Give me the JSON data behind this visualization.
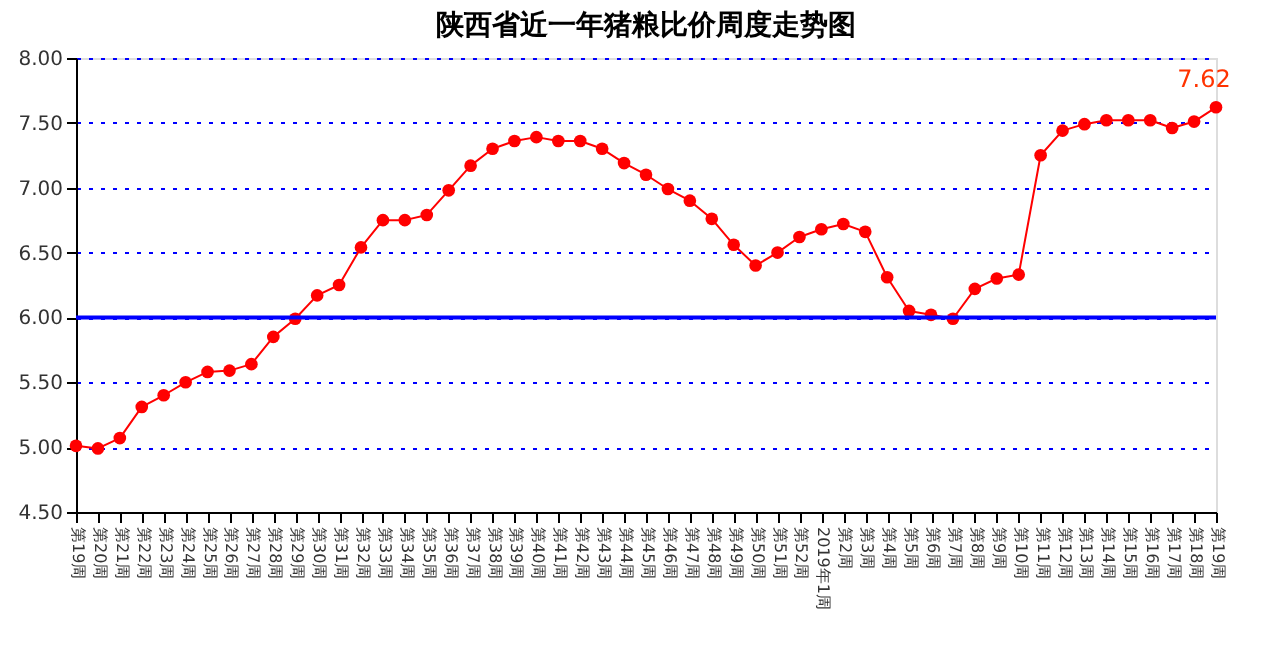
{
  "chart_data": {
    "type": "line",
    "title": "陕西省近一年猪粮比价周度走势图",
    "categories": [
      "第19周",
      "第20周",
      "第21周",
      "第22周",
      "第23周",
      "第24周",
      "第25周",
      "第26周",
      "第27周",
      "第28周",
      "第29周",
      "第30周",
      "第31周",
      "第32周",
      "第33周",
      "第34周",
      "第35周",
      "第36周",
      "第37周",
      "第38周",
      "第39周",
      "第40周",
      "第41周",
      "第42周",
      "第43周",
      "第44周",
      "第45周",
      "第46周",
      "第47周",
      "第48周",
      "第49周",
      "第50周",
      "第51周",
      "第52周",
      "2019年1周",
      "第2周",
      "第3周",
      "第4周",
      "第5周",
      "第6周",
      "第7周",
      "第8周",
      "第9周",
      "第10周",
      "第11周",
      "第12周",
      "第13周",
      "第14周",
      "第15周",
      "第16周",
      "第17周",
      "第18周",
      "第19周"
    ],
    "series": [
      {
        "color": "#ff0000",
        "values": [
          5.01,
          4.99,
          5.07,
          5.31,
          5.4,
          5.5,
          5.58,
          5.59,
          5.64,
          5.85,
          5.99,
          6.17,
          6.25,
          6.54,
          6.75,
          6.75,
          6.79,
          6.98,
          7.17,
          7.3,
          7.36,
          7.39,
          7.36,
          7.36,
          7.3,
          7.19,
          7.1,
          6.99,
          6.9,
          6.76,
          6.56,
          6.4,
          6.5,
          6.62,
          6.68,
          6.72,
          6.66,
          6.31,
          6.05,
          6.02,
          5.99,
          6.22,
          6.3,
          6.33,
          7.25,
          7.44,
          7.49,
          7.52,
          7.52,
          7.52,
          7.46,
          7.51,
          7.62
        ],
        "value_labels": [
          null,
          null,
          null,
          null,
          null,
          null,
          null,
          null,
          null,
          null,
          null,
          null,
          null,
          null,
          null,
          null,
          null,
          null,
          null,
          null,
          null,
          null,
          null,
          null,
          null,
          null,
          null,
          null,
          null,
          null,
          null,
          null,
          null,
          null,
          null,
          null,
          null,
          null,
          null,
          null,
          null,
          null,
          null,
          null,
          null,
          null,
          null,
          null,
          null,
          null,
          null,
          null,
          "7.62"
        ]
      }
    ],
    "ylim": [
      4.5,
      8.0
    ],
    "yticks": [
      {
        "value": 4.5,
        "label": "4.50"
      },
      {
        "value": 5.0,
        "label": "5.00"
      },
      {
        "value": 5.5,
        "label": "5.50"
      },
      {
        "value": 6.0,
        "label": "6.00"
      },
      {
        "value": 6.5,
        "label": "6.50"
      },
      {
        "value": 7.0,
        "label": "7.00"
      },
      {
        "value": 7.5,
        "label": "7.50"
      },
      {
        "value": 8.0,
        "label": "8.00"
      }
    ],
    "ref_lines": [
      {
        "axis": "y",
        "value": 6.0,
        "color": "#0000ff",
        "line_style": "solid"
      }
    ],
    "grid": "y",
    "marker": "circle",
    "line_style": "solid"
  }
}
